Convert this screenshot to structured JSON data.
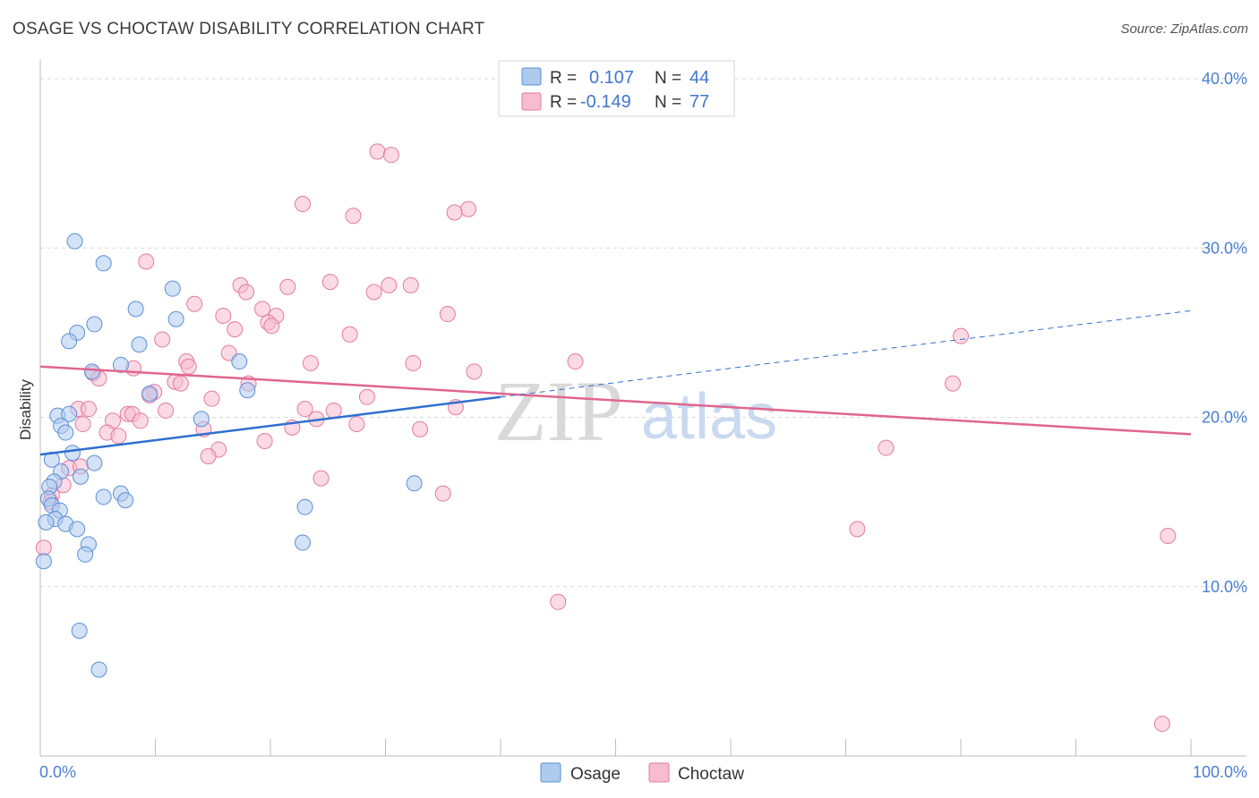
{
  "header": {
    "title": "OSAGE VS CHOCTAW DISABILITY CORRELATION CHART",
    "source": "Source: ZipAtlas.com"
  },
  "watermark": {
    "zip": "ZIP",
    "atlas": "atlas"
  },
  "legend": {
    "rows": [
      {
        "r_label": "R =",
        "r_value": "0.107",
        "n_label": "N =",
        "n_value": "44"
      },
      {
        "r_label": "R =",
        "r_value": "-0.149",
        "n_label": "N =",
        "n_value": "77"
      }
    ]
  },
  "bottom_legend": {
    "osage": "Osage",
    "choctaw": "Choctaw"
  },
  "colors": {
    "osage_fill": "#aecbee",
    "osage_stroke": "#5b8fd6",
    "osage_line": "#2f6fd0",
    "choctaw_fill": "#f7bcd0",
    "choctaw_stroke": "#e47a9e",
    "choctaw_line": "#e0668f",
    "grid": "#d8d8d8",
    "tick_text": "#4a7fd0"
  },
  "chart_data": {
    "type": "scatter",
    "title": "OSAGE VS CHOCTAW DISABILITY CORRELATION CHART",
    "xlabel": "",
    "ylabel": "Disability",
    "xlim": [
      0,
      100
    ],
    "ylim": [
      0,
      40
    ],
    "x_tick_labels": [
      "0.0%",
      "100.0%"
    ],
    "y_ticks": [
      10,
      20,
      30,
      40
    ],
    "y_tick_labels": [
      "10.0%",
      "20.0%",
      "30.0%",
      "40.0%"
    ],
    "grid": true,
    "legend_position": "top-center",
    "series": [
      {
        "name": "Osage",
        "R": 0.107,
        "N": 44,
        "trend": {
          "x0": 0,
          "y0": 17.8,
          "x1": 40,
          "y1": 21.2,
          "dashed_to_x": 100,
          "dashed_to_y": 26.3
        },
        "points": [
          [
            3.0,
            30.4
          ],
          [
            5.5,
            29.1
          ],
          [
            8.3,
            26.4
          ],
          [
            11.5,
            27.6
          ],
          [
            11.8,
            25.8
          ],
          [
            4.7,
            25.5
          ],
          [
            3.2,
            25.0
          ],
          [
            2.5,
            24.5
          ],
          [
            8.6,
            24.3
          ],
          [
            17.3,
            23.3
          ],
          [
            7.0,
            23.1
          ],
          [
            4.5,
            22.7
          ],
          [
            9.5,
            21.4
          ],
          [
            18.0,
            21.6
          ],
          [
            1.5,
            20.1
          ],
          [
            2.5,
            20.2
          ],
          [
            14.0,
            19.9
          ],
          [
            1.8,
            19.5
          ],
          [
            2.2,
            19.1
          ],
          [
            2.8,
            17.9
          ],
          [
            1.0,
            17.5
          ],
          [
            4.7,
            17.3
          ],
          [
            1.8,
            16.8
          ],
          [
            3.5,
            16.5
          ],
          [
            1.2,
            16.2
          ],
          [
            0.8,
            15.9
          ],
          [
            0.7,
            15.2
          ],
          [
            5.5,
            15.3
          ],
          [
            7.0,
            15.5
          ],
          [
            7.4,
            15.1
          ],
          [
            1.0,
            14.8
          ],
          [
            1.7,
            14.5
          ],
          [
            1.3,
            14.0
          ],
          [
            0.5,
            13.8
          ],
          [
            2.2,
            13.7
          ],
          [
            3.2,
            13.4
          ],
          [
            4.2,
            12.5
          ],
          [
            3.9,
            11.9
          ],
          [
            0.3,
            11.5
          ],
          [
            23.0,
            14.7
          ],
          [
            22.8,
            12.6
          ],
          [
            32.5,
            16.1
          ],
          [
            3.4,
            7.4
          ],
          [
            5.1,
            5.1
          ]
        ]
      },
      {
        "name": "Choctaw",
        "R": -0.149,
        "N": 77,
        "trend": {
          "x0": 0,
          "y0": 23.0,
          "x1": 100,
          "y1": 19.0
        },
        "points": [
          [
            29.3,
            35.7
          ],
          [
            30.5,
            35.5
          ],
          [
            22.8,
            32.6
          ],
          [
            37.2,
            32.3
          ],
          [
            36.0,
            32.1
          ],
          [
            27.2,
            31.9
          ],
          [
            9.2,
            29.2
          ],
          [
            25.2,
            28.0
          ],
          [
            17.4,
            27.8
          ],
          [
            21.5,
            27.7
          ],
          [
            30.3,
            27.8
          ],
          [
            32.2,
            27.8
          ],
          [
            29.0,
            27.4
          ],
          [
            17.9,
            27.4
          ],
          [
            13.4,
            26.7
          ],
          [
            15.9,
            26.0
          ],
          [
            19.3,
            26.4
          ],
          [
            20.5,
            26.0
          ],
          [
            35.4,
            26.1
          ],
          [
            19.8,
            25.6
          ],
          [
            20.1,
            25.4
          ],
          [
            16.9,
            25.2
          ],
          [
            26.9,
            24.9
          ],
          [
            10.6,
            24.6
          ],
          [
            80.0,
            24.8
          ],
          [
            16.4,
            23.8
          ],
          [
            12.7,
            23.3
          ],
          [
            23.5,
            23.2
          ],
          [
            32.4,
            23.2
          ],
          [
            46.5,
            23.3
          ],
          [
            12.9,
            23.0
          ],
          [
            8.1,
            22.9
          ],
          [
            4.6,
            22.6
          ],
          [
            5.1,
            22.3
          ],
          [
            37.7,
            22.7
          ],
          [
            11.7,
            22.1
          ],
          [
            12.2,
            22.0
          ],
          [
            18.1,
            22.0
          ],
          [
            79.3,
            22.0
          ],
          [
            9.9,
            21.5
          ],
          [
            9.5,
            21.3
          ],
          [
            14.9,
            21.1
          ],
          [
            28.4,
            21.2
          ],
          [
            3.3,
            20.5
          ],
          [
            4.2,
            20.5
          ],
          [
            23.0,
            20.5
          ],
          [
            25.5,
            20.4
          ],
          [
            10.9,
            20.4
          ],
          [
            36.1,
            20.6
          ],
          [
            7.6,
            20.2
          ],
          [
            8.0,
            20.2
          ],
          [
            24.0,
            19.9
          ],
          [
            6.3,
            19.8
          ],
          [
            8.7,
            19.8
          ],
          [
            3.7,
            19.6
          ],
          [
            27.5,
            19.6
          ],
          [
            21.9,
            19.4
          ],
          [
            14.2,
            19.3
          ],
          [
            33.0,
            19.3
          ],
          [
            5.8,
            19.1
          ],
          [
            6.8,
            18.9
          ],
          [
            19.5,
            18.6
          ],
          [
            15.5,
            18.1
          ],
          [
            73.5,
            18.2
          ],
          [
            14.6,
            17.7
          ],
          [
            2.5,
            17.0
          ],
          [
            3.5,
            17.1
          ],
          [
            24.4,
            16.4
          ],
          [
            2.0,
            16.0
          ],
          [
            35.0,
            15.5
          ],
          [
            1.0,
            15.4
          ],
          [
            0.9,
            15.0
          ],
          [
            71.0,
            13.4
          ],
          [
            98.0,
            13.0
          ],
          [
            0.3,
            12.3
          ],
          [
            45.0,
            9.1
          ],
          [
            97.5,
            1.9
          ]
        ]
      }
    ]
  }
}
